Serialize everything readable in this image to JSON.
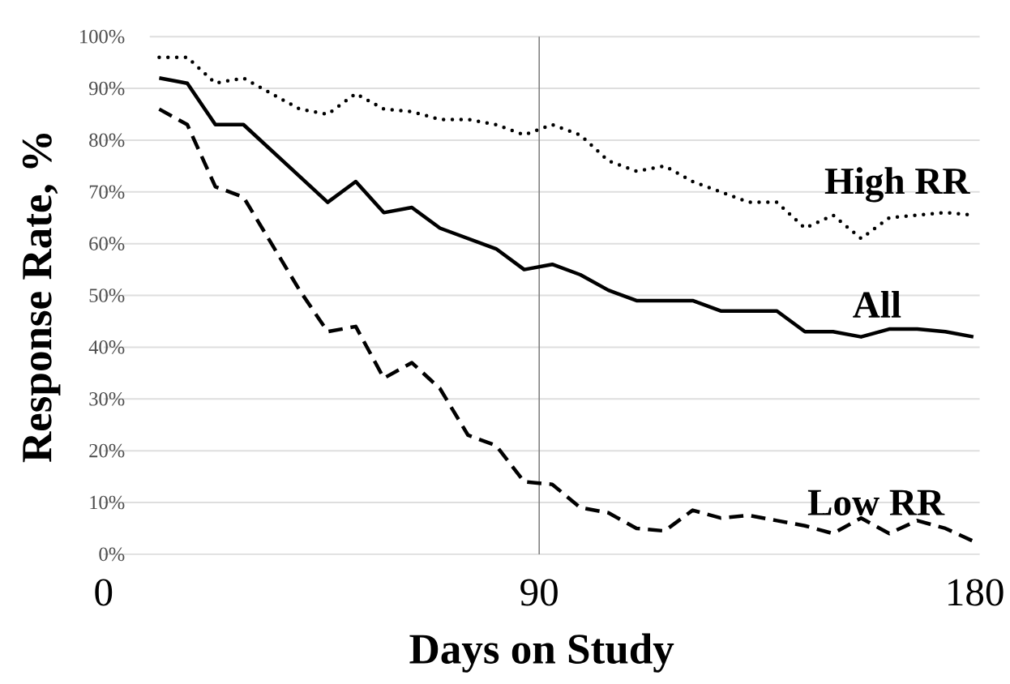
{
  "chart_data": {
    "type": "line",
    "xlabel": "Days on Study",
    "ylabel": "Response Rate, %",
    "x": [
      11.5,
      17.3,
      23.1,
      28.9,
      34.7,
      40.5,
      46.3,
      52.1,
      57.9,
      63.7,
      69.5,
      75.3,
      81.1,
      86.9,
      92.7,
      98.5,
      104.3,
      110.1,
      115.9,
      121.7,
      127.5,
      133.3,
      139.1,
      144.9,
      150.7,
      156.5,
      162.3,
      168.1,
      173.9,
      179.7
    ],
    "series": [
      {
        "name": "High RR",
        "color": "#000000",
        "line_style": "dotted",
        "values": [
          96,
          96,
          91,
          92,
          89,
          86,
          85,
          89,
          86,
          85.5,
          84,
          84,
          83,
          81,
          83,
          81,
          76,
          74,
          75,
          72,
          70,
          68,
          68,
          63,
          65.5,
          61,
          65,
          65.5,
          66,
          65.5
        ]
      },
      {
        "name": "All",
        "color": "#000000",
        "line_style": "solid",
        "values": [
          92,
          91,
          83,
          83,
          78,
          73,
          68,
          72,
          66,
          67,
          63,
          61,
          59,
          55,
          56,
          54,
          51,
          49,
          49,
          49,
          47,
          47,
          47,
          43,
          43,
          42,
          43.5,
          43.5,
          43,
          42
        ]
      },
      {
        "name": "Low RR",
        "color": "#000000",
        "line_style": "dashed",
        "values": [
          86,
          83,
          71,
          69,
          60,
          51,
          43,
          44,
          34,
          37,
          32,
          23,
          21,
          14,
          13.5,
          9,
          8,
          5,
          4.5,
          8.5,
          7,
          7.5,
          6.5,
          5.5,
          4,
          7,
          4,
          6.5,
          5,
          2.5
        ]
      }
    ],
    "xlim": [
      0,
      181
    ],
    "xticks": [
      0,
      90,
      180
    ],
    "ylim": [
      0,
      100
    ],
    "yticks": [
      {
        "value": 0,
        "label": "0%"
      },
      {
        "value": 10,
        "label": "10%"
      },
      {
        "value": 20,
        "label": "20%"
      },
      {
        "value": 30,
        "label": "30%"
      },
      {
        "value": 40,
        "label": "40%"
      },
      {
        "value": 50,
        "label": "50%"
      },
      {
        "value": 60,
        "label": "60%"
      },
      {
        "value": 70,
        "label": "70%"
      },
      {
        "value": 80,
        "label": "80%"
      },
      {
        "value": 90,
        "label": "90%"
      },
      {
        "value": 100,
        "label": "100%"
      }
    ],
    "grid": "y",
    "ref_lines": [
      {
        "axis": "x",
        "value": 90,
        "color": "#808080"
      }
    ]
  }
}
